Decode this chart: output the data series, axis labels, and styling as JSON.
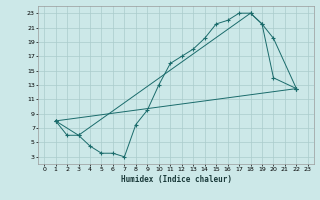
{
  "title": "",
  "xlabel": "Humidex (Indice chaleur)",
  "bg_color": "#cce8e8",
  "grid_color": "#aacccc",
  "line_color": "#1a6b6b",
  "xlim": [
    -0.5,
    23.5
  ],
  "ylim": [
    2,
    24
  ],
  "xticks": [
    0,
    1,
    2,
    3,
    4,
    5,
    6,
    7,
    8,
    9,
    10,
    11,
    12,
    13,
    14,
    15,
    16,
    17,
    18,
    19,
    20,
    21,
    22,
    23
  ],
  "yticks": [
    3,
    5,
    7,
    9,
    11,
    13,
    15,
    17,
    19,
    21,
    23
  ],
  "curve1_x": [
    1,
    2,
    3,
    4,
    5,
    6,
    7,
    8,
    9,
    10,
    11,
    12,
    13,
    14,
    15,
    16,
    17,
    18,
    19,
    20,
    22
  ],
  "curve1_y": [
    8,
    6,
    6,
    4.5,
    3.5,
    3.5,
    3,
    7.5,
    9.5,
    13,
    16,
    17,
    18,
    19.5,
    21.5,
    22,
    23,
    23,
    21.5,
    14,
    12.5
  ],
  "curve2_x": [
    1,
    3,
    18,
    19,
    20,
    22
  ],
  "curve2_y": [
    8,
    6,
    23,
    21.5,
    19.5,
    12.5
  ],
  "curve3_x": [
    1,
    22
  ],
  "curve3_y": [
    8,
    12.5
  ]
}
